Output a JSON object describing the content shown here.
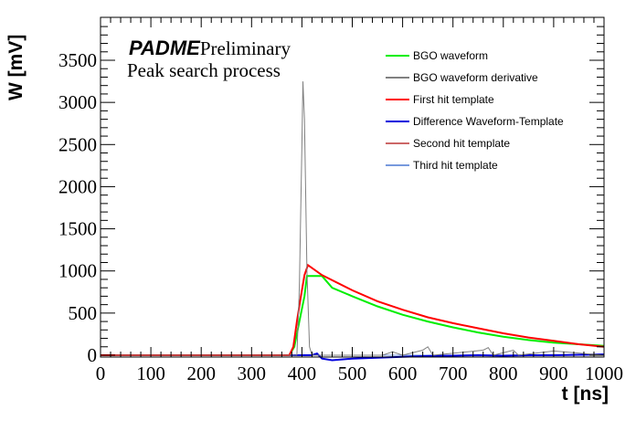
{
  "chart_data": {
    "type": "line",
    "title": [
      "PADME Preliminary",
      "Peak search process"
    ],
    "title_brand": "PADME",
    "title_brand_suffix": "Preliminary",
    "subtitle": "Peak search process",
    "xlabel": "t [ns]",
    "ylabel": "W [mV]",
    "xlim": [
      0,
      1000
    ],
    "ylim": [
      0,
      3900
    ],
    "x_ticks": [
      "0",
      "100",
      "200",
      "300",
      "400",
      "500",
      "600",
      "700",
      "800",
      "900",
      "1000"
    ],
    "y_ticks": [
      "0",
      "500",
      "1000",
      "1500",
      "2000",
      "2500",
      "3000",
      "3500"
    ],
    "grid": false,
    "legend_position": "top-right",
    "series": [
      {
        "name": "BGO waveform",
        "color": "#00ee00",
        "points": [
          [
            0,
            0
          ],
          [
            375,
            0
          ],
          [
            385,
            100
          ],
          [
            395,
            400
          ],
          [
            405,
            700
          ],
          [
            410,
            940
          ],
          [
            440,
            940
          ],
          [
            460,
            800
          ],
          [
            500,
            700
          ],
          [
            550,
            580
          ],
          [
            600,
            480
          ],
          [
            650,
            400
          ],
          [
            700,
            330
          ],
          [
            750,
            270
          ],
          [
            800,
            220
          ],
          [
            850,
            180
          ],
          [
            900,
            150
          ],
          [
            950,
            130
          ],
          [
            1000,
            110
          ]
        ]
      },
      {
        "name": "BGO waveform derivative",
        "color": "#808080",
        "points": [
          [
            0,
            0
          ],
          [
            390,
            0
          ],
          [
            395,
            800
          ],
          [
            400,
            2500
          ],
          [
            402,
            3250
          ],
          [
            405,
            2800
          ],
          [
            410,
            1000
          ],
          [
            415,
            100
          ],
          [
            420,
            0
          ],
          [
            560,
            0
          ],
          [
            580,
            40
          ],
          [
            600,
            0
          ],
          [
            640,
            60
          ],
          [
            650,
            100
          ],
          [
            660,
            0
          ],
          [
            760,
            60
          ],
          [
            770,
            90
          ],
          [
            780,
            0
          ],
          [
            820,
            60
          ],
          [
            830,
            0
          ],
          [
            900,
            50
          ],
          [
            1000,
            0
          ]
        ]
      },
      {
        "name": "First hit template",
        "color": "#ff0000",
        "points": [
          [
            0,
            0
          ],
          [
            375,
            0
          ],
          [
            383,
            100
          ],
          [
            390,
            400
          ],
          [
            398,
            700
          ],
          [
            405,
            950
          ],
          [
            412,
            1070
          ],
          [
            440,
            950
          ],
          [
            500,
            770
          ],
          [
            550,
            640
          ],
          [
            600,
            540
          ],
          [
            650,
            450
          ],
          [
            700,
            380
          ],
          [
            750,
            320
          ],
          [
            800,
            260
          ],
          [
            850,
            210
          ],
          [
            900,
            170
          ],
          [
            950,
            130
          ],
          [
            1000,
            100
          ]
        ]
      },
      {
        "name": "Difference Waveform-Template",
        "color": "#0000dd",
        "points": [
          [
            0,
            0
          ],
          [
            420,
            0
          ],
          [
            430,
            20
          ],
          [
            440,
            -40
          ],
          [
            460,
            -60
          ],
          [
            500,
            -40
          ],
          [
            550,
            -30
          ],
          [
            600,
            -20
          ],
          [
            650,
            -10
          ],
          [
            700,
            -5
          ],
          [
            750,
            0
          ],
          [
            800,
            -5
          ],
          [
            850,
            0
          ],
          [
            900,
            0
          ],
          [
            950,
            5
          ],
          [
            1000,
            10
          ]
        ]
      },
      {
        "name": "Second hit template",
        "color": "#cc6666",
        "points": [
          [
            0,
            0
          ],
          [
            1000,
            0
          ]
        ]
      },
      {
        "name": "Third hit template",
        "color": "#7799dd",
        "points": [
          [
            0,
            0
          ],
          [
            1000,
            0
          ]
        ]
      }
    ]
  }
}
